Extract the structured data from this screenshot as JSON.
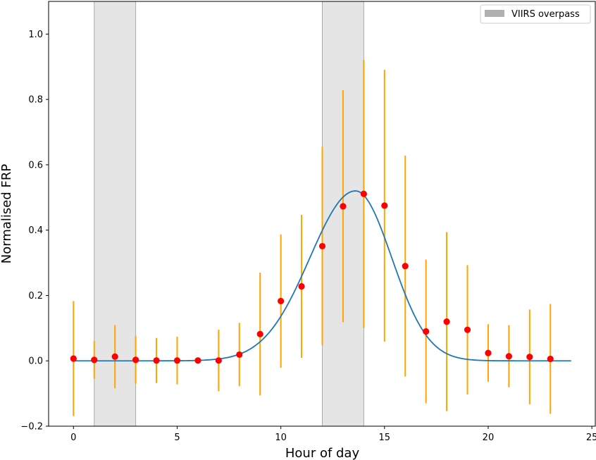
{
  "chart_data": {
    "type": "scatter",
    "title": "",
    "xlabel": "Hour of day",
    "ylabel": "Normalised FRP",
    "xlim": [
      -1.2,
      25.2
    ],
    "ylim": [
      -0.2,
      1.1
    ],
    "xticks": [
      0,
      5,
      10,
      15,
      20,
      25
    ],
    "yticks": [
      -0.2,
      0.0,
      0.2,
      0.4,
      0.6,
      0.8,
      1.0
    ],
    "xtick_labels": [
      "0",
      "5",
      "10",
      "15",
      "20",
      "25"
    ],
    "ytick_labels": [
      "−0.2",
      "0.0",
      "0.2",
      "0.4",
      "0.6",
      "0.8",
      "1.0"
    ],
    "grid": false,
    "legend": {
      "position": "top-right",
      "entries": [
        {
          "label": "VIIRS overpass",
          "color": "#b0b0b0"
        }
      ]
    },
    "shaded_regions": [
      {
        "x0": 1,
        "x1": 3,
        "color": "#e5e5e5",
        "edge": "#aaaaaa"
      },
      {
        "x0": 12,
        "x1": 14,
        "color": "#e5e5e5",
        "edge": "#aaaaaa"
      }
    ],
    "points": {
      "color": "#ff0000",
      "errorbar_color": "#ffa500",
      "x": [
        0,
        1,
        2,
        3,
        4,
        5,
        6,
        7,
        8,
        9,
        10,
        11,
        12,
        13,
        14,
        15,
        16,
        17,
        18,
        19,
        20,
        21,
        22,
        23
      ],
      "y": [
        0.007,
        0.003,
        0.013,
        0.003,
        0.001,
        0.001,
        0.001,
        0.001,
        0.019,
        0.082,
        0.183,
        0.228,
        0.351,
        0.473,
        0.511,
        0.475,
        0.29,
        0.09,
        0.12,
        0.095,
        0.024,
        0.014,
        0.012,
        0.006
      ],
      "yerr": [
        0.176,
        0.058,
        0.097,
        0.073,
        0.069,
        0.073,
        0.0,
        0.094,
        0.097,
        0.188,
        0.204,
        0.219,
        0.304,
        0.355,
        0.41,
        0.416,
        0.338,
        0.22,
        0.274,
        0.198,
        0.088,
        0.095,
        0.145,
        0.168
      ]
    },
    "fit_curve": {
      "color": "#1f77b4",
      "model": "gaussian",
      "amplitude": 0.52,
      "center": 13.6,
      "sigma_left": 2.2,
      "sigma_right": 1.75,
      "x_range": [
        0,
        24
      ]
    }
  }
}
